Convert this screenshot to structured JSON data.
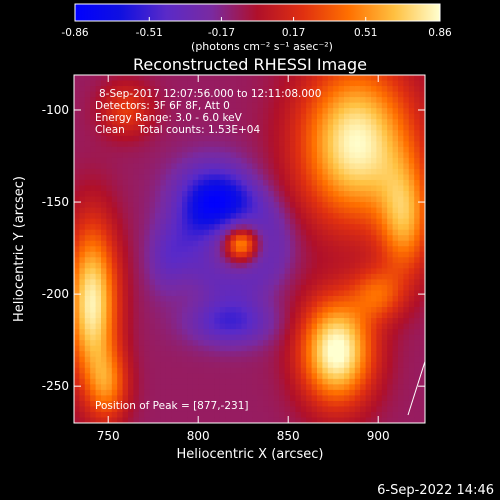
{
  "chart_data": {
    "type": "heatmap",
    "title": "Reconstructed RHESSI Image",
    "xlabel": "Heliocentric X (arcsec)",
    "ylabel": "Heliocentric Y (arcsec)",
    "xlim": [
      731,
      926
    ],
    "ylim": [
      -270,
      -81
    ],
    "xticks": [
      750,
      800,
      850,
      900
    ],
    "yticks": [
      -100,
      -150,
      -200,
      -250
    ],
    "colorbar": {
      "min": -0.86,
      "max": 0.86,
      "ticks": [
        "-0.86",
        "-0.51",
        "-0.17",
        "0.17",
        "0.51",
        "0.86"
      ],
      "tick_values": [
        -0.86,
        -0.51,
        -0.17,
        0.17,
        0.51,
        0.86
      ],
      "label": "(photons cm⁻² s⁻¹ asec⁻²)",
      "colors": [
        "#0000ff",
        "#1010e0",
        "#5a2ac8",
        "#7a2aa0",
        "#b0102a",
        "#e03010",
        "#ff7000",
        "#ffc040",
        "#ffffd0"
      ]
    },
    "annotations": [
      "8-Sep-2017 12:07:56.000 to 12:11:08.000",
      "Detectors: 3F 6F 8F, Att 0",
      "Energy Range: 3.0 - 6.0 keV",
      "Clean    Total counts: 1.53E+04"
    ],
    "peak_label": "Position of Peak = [877,-231]",
    "peak": {
      "x": 877,
      "y": -231
    },
    "features": [
      {
        "kind": "source",
        "x": 824,
        "y": -173,
        "amp": 0.65,
        "sx": 6,
        "sy": 6
      },
      {
        "kind": "ring",
        "x": 820,
        "y": -172,
        "amp": -0.22,
        "r": 22,
        "w": 9
      },
      {
        "kind": "blob",
        "x": 808,
        "y": -148,
        "amp": -0.55,
        "sx": 15,
        "sy": 14
      },
      {
        "kind": "blob",
        "x": 818,
        "y": -215,
        "amp": -0.4,
        "sx": 16,
        "sy": 9
      },
      {
        "kind": "blob",
        "x": 783,
        "y": -180,
        "amp": -0.25,
        "sx": 8,
        "sy": 14
      },
      {
        "kind": "blob",
        "x": 741,
        "y": -205,
        "amp": 0.92,
        "sx": 10,
        "sy": 30
      },
      {
        "kind": "blob",
        "x": 750,
        "y": -250,
        "amp": 0.45,
        "sx": 8,
        "sy": 14
      },
      {
        "kind": "blob",
        "x": 888,
        "y": -118,
        "amp": 0.95,
        "sx": 22,
        "sy": 30
      },
      {
        "kind": "blob",
        "x": 915,
        "y": -160,
        "amp": 0.6,
        "sx": 10,
        "sy": 22
      },
      {
        "kind": "blob",
        "x": 877,
        "y": -231,
        "amp": 1.0,
        "sx": 14,
        "sy": 20
      },
      {
        "kind": "blob",
        "x": 760,
        "y": -100,
        "amp": 0.35,
        "sx": 10,
        "sy": 10
      },
      {
        "kind": "blob",
        "x": 900,
        "y": -200,
        "amp": 0.4,
        "sx": 10,
        "sy": 10
      }
    ]
  },
  "footer": {
    "date": "6-Sep-2022 14:46"
  }
}
